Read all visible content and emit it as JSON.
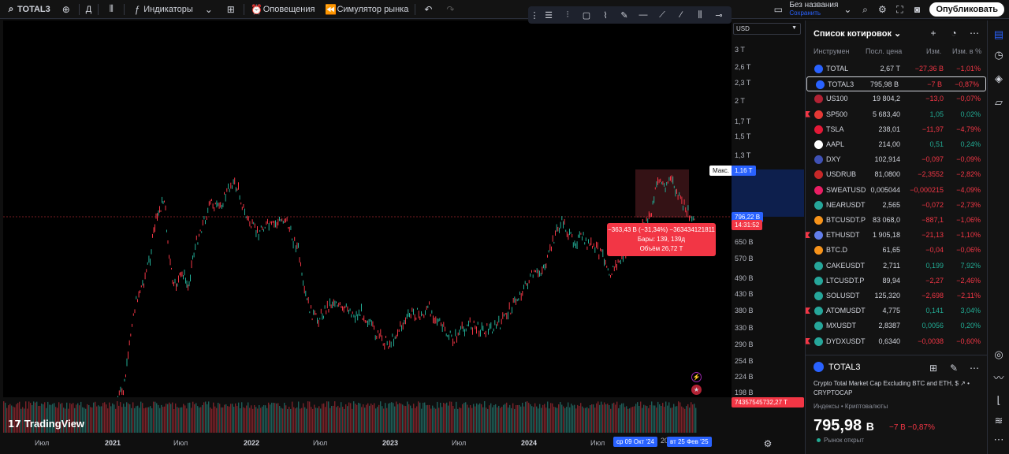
{
  "toolbar": {
    "symbol": "TOTAL3",
    "interval": "Д",
    "indicators": "Индикаторы",
    "alerts": "Оповещения",
    "replay": "Симулятор рынка",
    "layout_name": "Без названия",
    "layout_saved": "Сохранить",
    "publish": "Опубликовать"
  },
  "chart": {
    "currency": "USD",
    "price_labels": [
      "3 T",
      "2,6 T",
      "2,3 T",
      "2 T",
      "1,7 T",
      "1,5 T",
      "1,3 T",
      "990 B",
      "870 B",
      "650 B",
      "570 B",
      "490 B",
      "430 B",
      "380 B",
      "330 B",
      "290 B",
      "254 B",
      "224 B",
      "198 B"
    ],
    "max_label": "Макс.",
    "max_value": "1,16 T",
    "last_price": "796,22 B",
    "countdown": "14:31:52",
    "volume_value": "74357545732,27 T",
    "measure": {
      "line1": "−363,43 B (−31,34%) −363434121811",
      "line2": "Бары: 139, 139д",
      "line3": "Объём 26,72 T"
    },
    "time_labels": [
      "Июл",
      "2021",
      "Июл",
      "2022",
      "Июл",
      "2023",
      "Июл",
      "2024",
      "Июл"
    ],
    "range_start": "ср 09 Окт '24",
    "range_end_prefix": "20",
    "range_end": "вт 25 Фев '25",
    "brand": "TradingView",
    "red_color": "#f23645",
    "green_color": "#22ab94"
  },
  "watchlist": {
    "title": "Список котировок",
    "cols": {
      "sym": "Инструмен",
      "last": "Посл. цена",
      "chg": "Изм.",
      "chp": "Изм. в %"
    },
    "rows": [
      {
        "sym": "TOTAL",
        "last": "2,67 T",
        "chg": "−27,36 B",
        "chp": "−1,01%",
        "dir": "neg",
        "color": "#2962ff",
        "flag": false
      },
      {
        "sym": "TOTAL3",
        "last": "795,98 B",
        "chg": "−7 B",
        "chp": "−0,87%",
        "dir": "neg",
        "color": "#2962ff",
        "flag": false,
        "selected": true
      },
      {
        "sym": "US100",
        "last": "19 804,2",
        "chg": "−13,0",
        "chp": "−0,07%",
        "dir": "neg",
        "color": "#b22234",
        "flag": false
      },
      {
        "sym": "SP500",
        "last": "5 683,40",
        "chg": "1,05",
        "chp": "0,02%",
        "dir": "pos",
        "color": "#e53935",
        "flag": true
      },
      {
        "sym": "TSLA",
        "last": "238,01",
        "chg": "−11,97",
        "chp": "−4,79%",
        "dir": "neg",
        "color": "#e31937",
        "flag": false
      },
      {
        "sym": "AAPL",
        "last": "214,00",
        "chg": "0,51",
        "chp": "0,24%",
        "dir": "pos",
        "color": "#ffffff",
        "flag": false
      },
      {
        "sym": "DXY",
        "last": "102,914",
        "chg": "−0,097",
        "chp": "−0,09%",
        "dir": "neg",
        "color": "#3f51b5",
        "flag": false
      },
      {
        "sym": "USDRUB",
        "last": "81,0800",
        "chg": "−2,3552",
        "chp": "−2,82%",
        "dir": "neg",
        "color": "#c62828",
        "flag": false
      },
      {
        "sym": "SWEATUSD",
        "last": "0,005044",
        "chg": "−0,000215",
        "chp": "−4,09%",
        "dir": "neg",
        "color": "#e91e63",
        "flag": false
      },
      {
        "sym": "NEARUSDT",
        "last": "2,565",
        "chg": "−0,072",
        "chp": "−2,73%",
        "dir": "neg",
        "color": "#26a69a",
        "flag": false
      },
      {
        "sym": "BTCUSDT.P",
        "last": "83 068,0",
        "chg": "−887,1",
        "chp": "−1,06%",
        "dir": "neg",
        "color": "#f7931a",
        "flag": false
      },
      {
        "sym": "ETHUSDT",
        "last": "1 905,18",
        "chg": "−21,13",
        "chp": "−1,10%",
        "dir": "neg",
        "color": "#627eea",
        "flag": true
      },
      {
        "sym": "BTC.D",
        "last": "61,65",
        "chg": "−0,04",
        "chp": "−0,06%",
        "dir": "neg",
        "color": "#f7931a",
        "flag": false
      },
      {
        "sym": "CAKEUSDT",
        "last": "2,711",
        "chg": "0,199",
        "chp": "7,92%",
        "dir": "pos",
        "color": "#26a69a",
        "flag": false
      },
      {
        "sym": "LTCUSDT.P",
        "last": "89,94",
        "chg": "−2,27",
        "chp": "−2,46%",
        "dir": "neg",
        "color": "#26a69a",
        "flag": false
      },
      {
        "sym": "SOLUSDT",
        "last": "125,320",
        "chg": "−2,698",
        "chp": "−2,11%",
        "dir": "neg",
        "color": "#26a69a",
        "flag": false
      },
      {
        "sym": "ATOMUSDT",
        "last": "4,775",
        "chg": "0,141",
        "chp": "3,04%",
        "dir": "pos",
        "color": "#26a69a",
        "flag": true
      },
      {
        "sym": "MXUSDT",
        "last": "2,8387",
        "chg": "0,0056",
        "chp": "0,20%",
        "dir": "pos",
        "color": "#26a69a",
        "flag": false
      },
      {
        "sym": "DYDXUSDT",
        "last": "0,6340",
        "chg": "−0,0038",
        "chp": "−0,60%",
        "dir": "neg",
        "color": "#26a69a",
        "flag": true
      }
    ]
  },
  "detail": {
    "symbol": "TOTAL3",
    "name": "Crypto Total Market Cap Excluding BTC and ETH, $",
    "exchange": "CRYPTOCAP",
    "category": "Индексы • Криптовалюты",
    "price": "795,98",
    "unit": "B",
    "change": "−7 B",
    "change_pct": "−0,87%",
    "status": "Рынок открыт"
  }
}
